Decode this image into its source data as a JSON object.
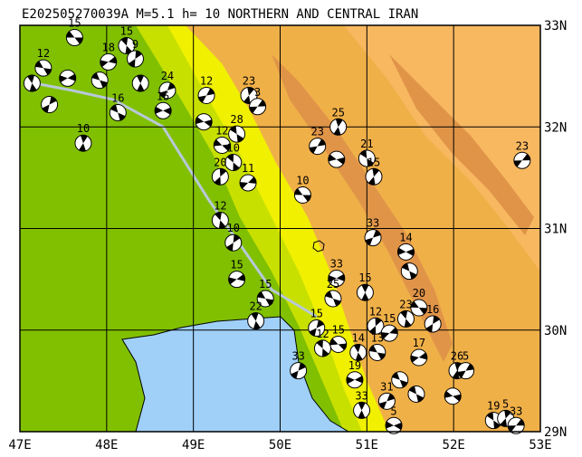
{
  "map": {
    "title": "E202505270039A M=5.1 h= 10 NORTHERN AND CENTRAL IRAN",
    "lonlim": [
      47,
      53
    ],
    "latlim": [
      29,
      33
    ],
    "lonticks": [
      {
        "value": 47,
        "label": "47E"
      },
      {
        "value": 48,
        "label": "48E"
      },
      {
        "value": 49,
        "label": "49E"
      },
      {
        "value": 50,
        "label": "50E"
      },
      {
        "value": 51,
        "label": "51E"
      },
      {
        "value": 52,
        "label": "52E"
      },
      {
        "value": 53,
        "label": "53E"
      }
    ],
    "latticks": [
      {
        "value": 29,
        "label": "29N"
      },
      {
        "value": 30,
        "label": "30N"
      },
      {
        "value": 31,
        "label": "31N"
      },
      {
        "value": 32,
        "label": "32N"
      },
      {
        "value": 33,
        "label": "33N"
      }
    ],
    "grid": true,
    "events": [
      {
        "lon": 47.63,
        "lat": 32.88,
        "depth": 15
      },
      {
        "lon": 48.23,
        "lat": 32.8,
        "depth": 15
      },
      {
        "lon": 48.33,
        "lat": 32.67,
        "depth": 9
      },
      {
        "lon": 48.02,
        "lat": 32.64,
        "depth": 18
      },
      {
        "lon": 47.27,
        "lat": 32.58,
        "depth": 12
      },
      {
        "lon": 47.14,
        "lat": 32.43,
        "depth": null
      },
      {
        "lon": 47.34,
        "lat": 32.22,
        "depth": null
      },
      {
        "lon": 47.55,
        "lat": 32.48,
        "depth": null
      },
      {
        "lon": 47.92,
        "lat": 32.46,
        "depth": null
      },
      {
        "lon": 48.39,
        "lat": 32.43,
        "depth": null
      },
      {
        "lon": 48.7,
        "lat": 32.36,
        "depth": 24
      },
      {
        "lon": 48.65,
        "lat": 32.16,
        "depth": 15
      },
      {
        "lon": 48.13,
        "lat": 32.14,
        "depth": 16
      },
      {
        "lon": 47.73,
        "lat": 31.84,
        "depth": 10
      },
      {
        "lon": 49.15,
        "lat": 32.31,
        "depth": 12
      },
      {
        "lon": 49.12,
        "lat": 32.05,
        "depth": null
      },
      {
        "lon": 49.5,
        "lat": 31.93,
        "depth": 28
      },
      {
        "lon": 49.64,
        "lat": 32.31,
        "depth": 23
      },
      {
        "lon": 49.74,
        "lat": 32.2,
        "depth": 3
      },
      {
        "lon": 49.33,
        "lat": 31.82,
        "depth": 12
      },
      {
        "lon": 49.46,
        "lat": 31.65,
        "depth": 10
      },
      {
        "lon": 49.31,
        "lat": 31.51,
        "depth": 20
      },
      {
        "lon": 49.63,
        "lat": 31.45,
        "depth": 11
      },
      {
        "lon": 50.26,
        "lat": 31.33,
        "depth": 10
      },
      {
        "lon": 49.31,
        "lat": 31.08,
        "depth": 12
      },
      {
        "lon": 49.46,
        "lat": 30.86,
        "depth": 10
      },
      {
        "lon": 49.5,
        "lat": 30.5,
        "depth": 15
      },
      {
        "lon": 49.83,
        "lat": 30.31,
        "depth": 15
      },
      {
        "lon": 49.72,
        "lat": 30.09,
        "depth": 22
      },
      {
        "lon": 50.42,
        "lat": 30.02,
        "depth": 15
      },
      {
        "lon": 50.65,
        "lat": 30.51,
        "depth": 33
      },
      {
        "lon": 50.61,
        "lat": 30.31,
        "depth": 25
      },
      {
        "lon": 50.98,
        "lat": 30.37,
        "depth": 15
      },
      {
        "lon": 51.07,
        "lat": 30.91,
        "depth": 33
      },
      {
        "lon": 51.45,
        "lat": 30.77,
        "depth": 14
      },
      {
        "lon": 51.49,
        "lat": 30.58,
        "depth": null
      },
      {
        "lon": 50.67,
        "lat": 32.0,
        "depth": 25
      },
      {
        "lon": 50.43,
        "lat": 31.81,
        "depth": 23
      },
      {
        "lon": 50.65,
        "lat": 31.68,
        "depth": null
      },
      {
        "lon": 51.0,
        "lat": 31.69,
        "depth": 21
      },
      {
        "lon": 51.08,
        "lat": 31.51,
        "depth": 15
      },
      {
        "lon": 52.79,
        "lat": 31.67,
        "depth": 23
      },
      {
        "lon": 50.67,
        "lat": 29.86,
        "depth": 15
      },
      {
        "lon": 50.49,
        "lat": 29.82,
        "depth": 12
      },
      {
        "lon": 51.1,
        "lat": 30.04,
        "depth": 12
      },
      {
        "lon": 51.26,
        "lat": 29.97,
        "depth": 15
      },
      {
        "lon": 51.6,
        "lat": 30.22,
        "depth": 20
      },
      {
        "lon": 51.45,
        "lat": 30.11,
        "depth": 23
      },
      {
        "lon": 51.76,
        "lat": 30.06,
        "depth": 16
      },
      {
        "lon": 51.6,
        "lat": 29.73,
        "depth": 17
      },
      {
        "lon": 51.12,
        "lat": 29.78,
        "depth": 13
      },
      {
        "lon": 50.9,
        "lat": 29.78,
        "depth": 14
      },
      {
        "lon": 50.21,
        "lat": 29.6,
        "depth": 33
      },
      {
        "lon": 50.86,
        "lat": 29.51,
        "depth": 19
      },
      {
        "lon": 51.38,
        "lat": 29.51,
        "depth": null
      },
      {
        "lon": 50.94,
        "lat": 29.21,
        "depth": 33
      },
      {
        "lon": 51.23,
        "lat": 29.3,
        "depth": 31
      },
      {
        "lon": 51.31,
        "lat": 29.06,
        "depth": 5
      },
      {
        "lon": 51.57,
        "lat": 29.37,
        "depth": null
      },
      {
        "lon": 52.04,
        "lat": 29.6,
        "depth": 26
      },
      {
        "lon": 52.14,
        "lat": 29.6,
        "depth": 5
      },
      {
        "lon": 51.99,
        "lat": 29.35,
        "depth": null
      },
      {
        "lon": 52.46,
        "lat": 29.11,
        "depth": 19
      },
      {
        "lon": 52.6,
        "lat": 29.13,
        "depth": 5
      },
      {
        "lon": 52.72,
        "lat": 29.06,
        "depth": 33
      }
    ]
  }
}
